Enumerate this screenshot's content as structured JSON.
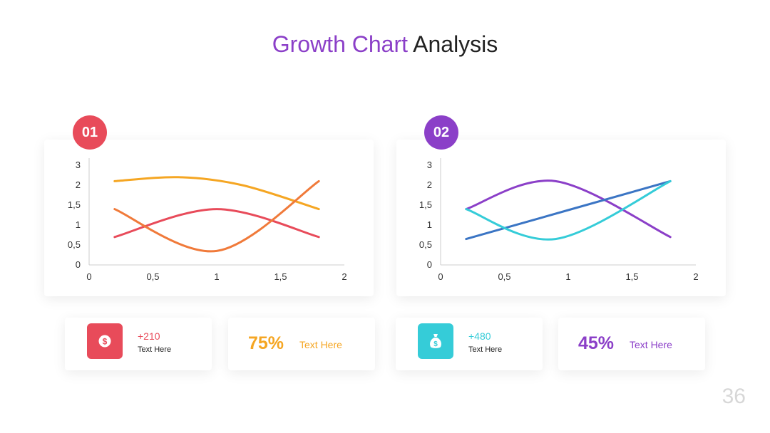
{
  "title": {
    "accent": "Growth Chart",
    "rest": " Analysis"
  },
  "page_number": "36",
  "colors": {
    "red": "#e84b5a",
    "purple": "#8b3fc8",
    "orange": "#f5a623",
    "cyan": "#35ccd8",
    "blue": "#3b75c4",
    "dark_orange": "#f07a3a"
  },
  "cards": [
    {
      "badge": "01"
    },
    {
      "badge": "02"
    }
  ],
  "stats": [
    {
      "icon": "dollar-coin-icon",
      "value": "+210",
      "label": "Text Here"
    },
    {
      "percent": "75%",
      "label": "Text Here"
    },
    {
      "icon": "money-bag-icon",
      "value": "+480",
      "label": "Text Here"
    },
    {
      "percent": "45%",
      "label": "Text Here"
    }
  ],
  "chart_data": [
    {
      "type": "line",
      "x_ticks": [
        "0",
        "0,5",
        "1",
        "1,5",
        "2"
      ],
      "y_ticks": [
        "0",
        "0,5",
        "1",
        "1,5",
        "2",
        "3"
      ],
      "xlim": [
        0,
        2
      ],
      "series": [
        {
          "color": "#f5a623",
          "x": [
            0.2,
            0.7,
            1.2,
            1.8
          ],
          "y": [
            2.1,
            2.2,
            2.0,
            1.4
          ]
        },
        {
          "color": "#e84b5a",
          "x": [
            0.2,
            1.0,
            1.8
          ],
          "y": [
            0.7,
            1.4,
            0.7
          ]
        },
        {
          "color": "#f07a3a",
          "x": [
            0.2,
            1.0,
            1.8
          ],
          "y": [
            1.4,
            0.35,
            2.1
          ]
        }
      ]
    },
    {
      "type": "line",
      "x_ticks": [
        "0",
        "0,5",
        "1",
        "1,5",
        "2"
      ],
      "y_ticks": [
        "0",
        "0,5",
        "1",
        "1,5",
        "2",
        "3"
      ],
      "xlim": [
        0,
        2
      ],
      "series": [
        {
          "color": "#8b3fc8",
          "x": [
            0.2,
            0.9,
            1.8
          ],
          "y": [
            1.4,
            2.1,
            0.7
          ]
        },
        {
          "color": "#3b75c4",
          "x": [
            0.2,
            1.8
          ],
          "y": [
            0.65,
            2.1
          ]
        },
        {
          "color": "#35ccd8",
          "x": [
            0.2,
            0.9,
            1.8
          ],
          "y": [
            1.4,
            0.65,
            2.1
          ]
        }
      ]
    }
  ]
}
